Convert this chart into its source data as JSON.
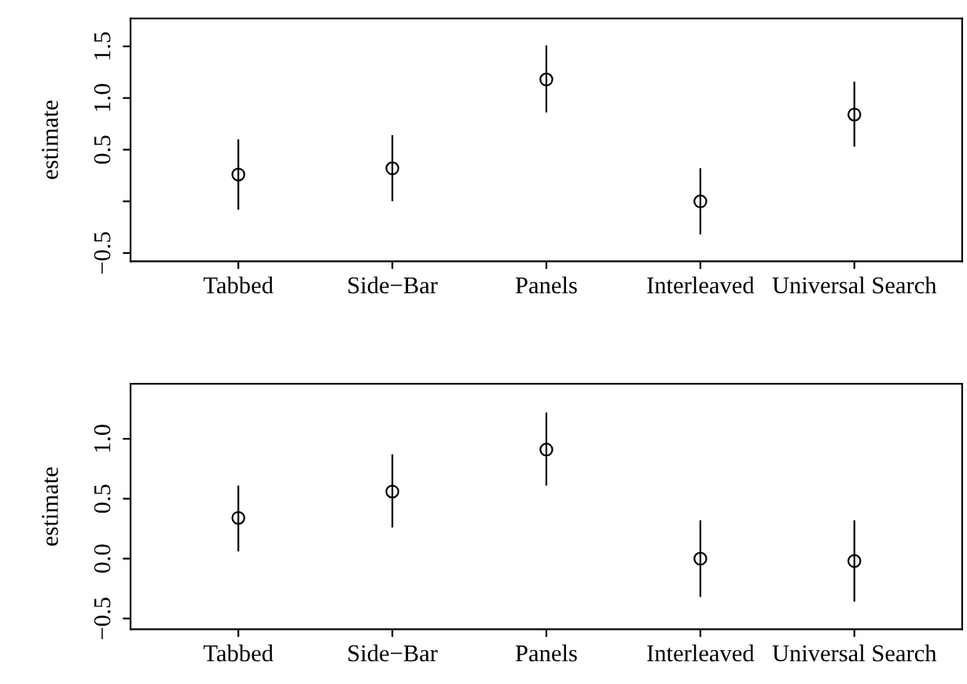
{
  "chart_data": [
    {
      "type": "scatter",
      "ylabel": "estimate",
      "categories": [
        "Tabbed",
        "Side−Bar",
        "Panels",
        "Interleaved",
        "Universal Search"
      ],
      "series": [
        {
          "color": "#000000",
          "values": [
            0.26,
            0.32,
            1.18,
            0.0,
            0.84
          ],
          "errors": [
            [
              -0.08,
              0.6
            ],
            [
              0.0,
              0.64
            ],
            [
              0.86,
              1.51
            ],
            [
              -0.32,
              0.32
            ],
            [
              0.53,
              1.16
            ]
          ]
        }
      ],
      "ylim": [
        -0.58,
        1.77
      ],
      "yticks": [
        {
          "value": -0.5,
          "label": "−0.5"
        },
        {
          "value": 0,
          "label": null
        },
        {
          "value": 0.5,
          "label": "0.5"
        },
        {
          "value": 1,
          "label": "1.0"
        },
        {
          "value": 1.5,
          "label": "1.5"
        }
      ],
      "marker": "circle",
      "grid": false,
      "legend": false
    },
    {
      "type": "scatter",
      "ylabel": "estimate",
      "categories": [
        "Tabbed",
        "Side−Bar",
        "Panels",
        "Interleaved",
        "Universal Search"
      ],
      "series": [
        {
          "color": "#000000",
          "values": [
            0.34,
            0.56,
            0.91,
            0.0,
            -0.02
          ],
          "errors": [
            [
              0.06,
              0.61
            ],
            [
              0.26,
              0.87
            ],
            [
              0.61,
              1.22
            ],
            [
              -0.32,
              0.32
            ],
            [
              -0.36,
              0.32
            ]
          ]
        }
      ],
      "ylim": [
        -0.59,
        1.46
      ],
      "yticks": [
        {
          "value": -0.5,
          "label": "−0.5"
        },
        {
          "value": 0,
          "label": "0.0"
        },
        {
          "value": 0.5,
          "label": "0.5"
        },
        {
          "value": 1,
          "label": "1.0"
        }
      ],
      "marker": "circle",
      "grid": false,
      "legend": false
    }
  ]
}
